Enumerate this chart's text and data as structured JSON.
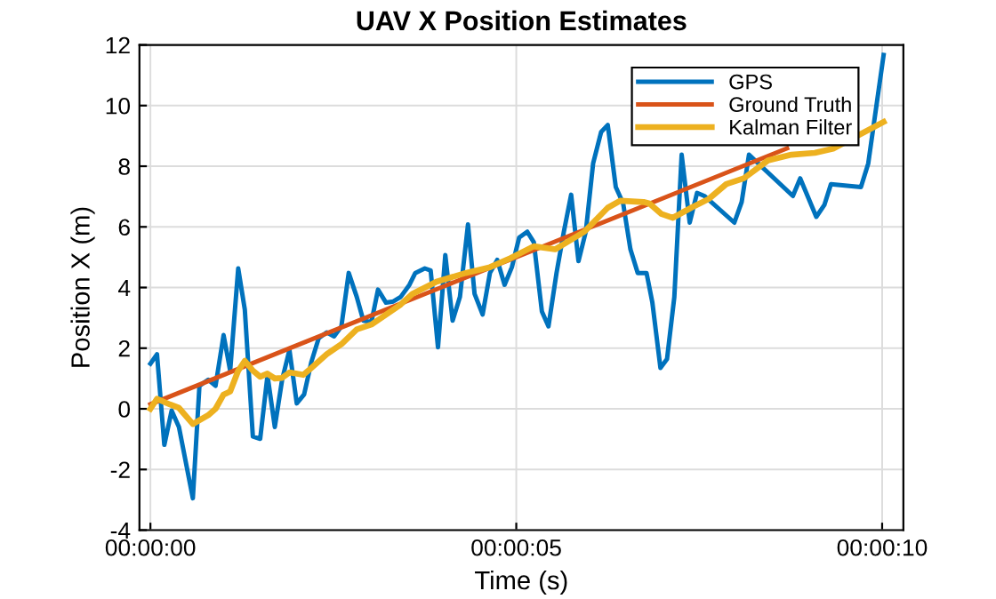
{
  "chart_data": {
    "type": "line",
    "title": "UAV X Position Estimates",
    "xlabel": "Time (s)",
    "ylabel": "Position X (m)",
    "xlim": [
      -0.15,
      10.29
    ],
    "xticks": [
      {
        "value": 0,
        "label": "00:00:00"
      },
      {
        "value": 5,
        "label": "00:00:05"
      },
      {
        "value": 10,
        "label": "00:00:10"
      }
    ],
    "ylim": [
      -4,
      12
    ],
    "yticks": [
      -4,
      -2,
      0,
      2,
      4,
      6,
      8,
      10,
      12
    ],
    "grid": true,
    "legend": "top right",
    "line_style": "solid",
    "series": [
      {
        "name": "GPS",
        "color": "#0072bd",
        "x": [
          0,
          0.09,
          0.19,
          0.29,
          0.39,
          0.58,
          0.67,
          0.79,
          0.89,
          1.0,
          1.09,
          1.2,
          1.29,
          1.4,
          1.5,
          1.6,
          1.7,
          1.8,
          1.9,
          2.0,
          2.1,
          2.2,
          2.3,
          2.41,
          2.51,
          2.61,
          2.71,
          2.82,
          2.91,
          3.02,
          3.11,
          3.22,
          3.32,
          3.42,
          3.54,
          3.62,
          3.75,
          3.83,
          3.93,
          4.03,
          4.13,
          4.23,
          4.34,
          4.43,
          4.54,
          4.64,
          4.74,
          4.84,
          4.94,
          5.04,
          5.15,
          5.24,
          5.35,
          5.44,
          5.55,
          5.65,
          5.75,
          5.85,
          5.95,
          6.05,
          6.16,
          6.25,
          6.36,
          6.46,
          6.56,
          6.66,
          6.78,
          6.86,
          6.97,
          7.06,
          7.16,
          7.26,
          7.37,
          7.47,
          7.57,
          7.98,
          8.08,
          8.18,
          8.78,
          8.88,
          9.1,
          9.21,
          9.3,
          9.71,
          9.81,
          10.02
        ],
        "values": [
          1.49,
          1.8,
          -1.19,
          -0.06,
          -0.6,
          -2.95,
          0.76,
          0.96,
          0.76,
          2.43,
          1.26,
          4.63,
          3.27,
          -0.91,
          -0.99,
          1.1,
          -0.6,
          0.96,
          1.94,
          0.18,
          0.47,
          1.55,
          2.33,
          2.52,
          2.39,
          2.72,
          4.48,
          3.69,
          2.91,
          2.86,
          3.93,
          3.5,
          3.54,
          3.69,
          4.09,
          4.48,
          4.63,
          4.56,
          2.03,
          5.07,
          2.91,
          3.69,
          6.08,
          3.79,
          3.11,
          4.48,
          4.91,
          4.09,
          4.67,
          5.65,
          5.84,
          5.49,
          3.21,
          2.72,
          4.48,
          5.84,
          7.06,
          4.87,
          5.84,
          8.09,
          9.13,
          9.36,
          7.31,
          6.78,
          5.26,
          4.48,
          4.48,
          3.5,
          1.35,
          1.64,
          3.69,
          8.38,
          6.14,
          7.12,
          7.02,
          6.14,
          6.82,
          8.38,
          7.02,
          7.6,
          6.33,
          6.72,
          7.41,
          7.31,
          8.09,
          11.67
        ]
      },
      {
        "name": "Ground Truth",
        "color": "#d95319",
        "x": [
          0,
          2,
          4,
          6,
          8.7
        ],
        "values": [
          0.15,
          2.09,
          4.03,
          5.97,
          8.59
        ]
      },
      {
        "name": "Kalman Filter",
        "color": "#edb120",
        "x": [
          0,
          0.09,
          0.27,
          0.39,
          0.58,
          0.79,
          0.89,
          1.0,
          1.09,
          1.2,
          1.29,
          1.4,
          1.5,
          1.6,
          1.7,
          1.8,
          1.9,
          2.09,
          2.2,
          2.41,
          2.61,
          2.82,
          3.02,
          3.22,
          3.42,
          3.58,
          3.91,
          4.31,
          4.64,
          4.92,
          5.24,
          5.53,
          5.93,
          6.25,
          6.42,
          6.74,
          6.82,
          6.98,
          7.14,
          7.39,
          7.63,
          7.87,
          8.11,
          8.44,
          8.76,
          9.08,
          9.33,
          10.02
        ],
        "values": [
          0,
          0.33,
          0.14,
          0.03,
          -0.5,
          -0.21,
          0.0,
          0.47,
          0.57,
          1.26,
          1.58,
          1.26,
          1.06,
          1.16,
          1.0,
          1.02,
          1.2,
          1.12,
          1.35,
          1.8,
          2.13,
          2.62,
          2.78,
          3.11,
          3.44,
          3.79,
          4.19,
          4.48,
          4.67,
          4.97,
          5.36,
          5.26,
          5.84,
          6.63,
          6.86,
          6.82,
          6.77,
          6.43,
          6.3,
          6.63,
          6.92,
          7.41,
          7.6,
          8.19,
          8.38,
          8.44,
          8.58,
          9.46
        ]
      }
    ]
  }
}
